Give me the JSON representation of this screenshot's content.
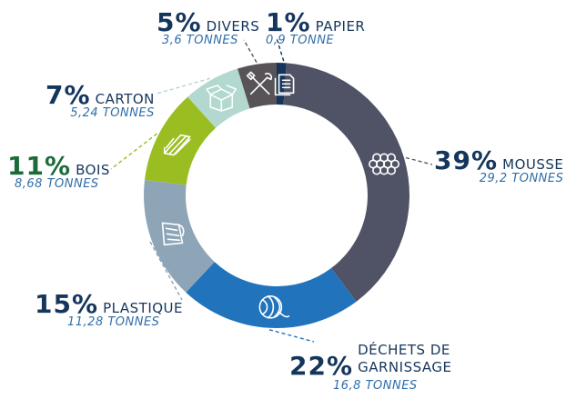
{
  "chart_data": {
    "type": "pie",
    "donut": true,
    "slices": [
      {
        "name": "PAPIER",
        "percent_label": "1%",
        "value": 0.9,
        "quantity_label": "0,9 TONNE",
        "color": "#16345a",
        "icon": "paper-icon"
      },
      {
        "name": "MOUSSE",
        "percent_label": "39%",
        "value": 29.2,
        "quantity_label": "29,2 TONNES",
        "color": "#4f5365",
        "icon": "foam-icon"
      },
      {
        "name": "DÉCHETS DE GARNISSAGE",
        "name_line1": "DÉCHETS DE",
        "name_line2": "GARNISSAGE",
        "percent_label": "22%",
        "value": 16.8,
        "quantity_label": "16,8 TONNES",
        "color": "#2173bb",
        "icon": "yarn-icon"
      },
      {
        "name": "PLASTIQUE",
        "percent_label": "15%",
        "value": 11.28,
        "quantity_label": "11,28 TONNES",
        "color": "#8ea5b8",
        "icon": "plastic-icon"
      },
      {
        "name": "BOIS",
        "percent_label": "11%",
        "value": 8.68,
        "quantity_label": "8,68 TONNES",
        "color": "#9abd22",
        "icon": "wood-icon"
      },
      {
        "name": "CARTON",
        "percent_label": "7%",
        "value": 5.24,
        "quantity_label": "5,24 TONNES",
        "color": "#b2d8cf",
        "icon": "box-icon"
      },
      {
        "name": "DIVERS",
        "percent_label": "5%",
        "value": 3.6,
        "quantity_label": "3,6 TONNES",
        "color": "#575356",
        "icon": "tools-icon"
      }
    ]
  }
}
